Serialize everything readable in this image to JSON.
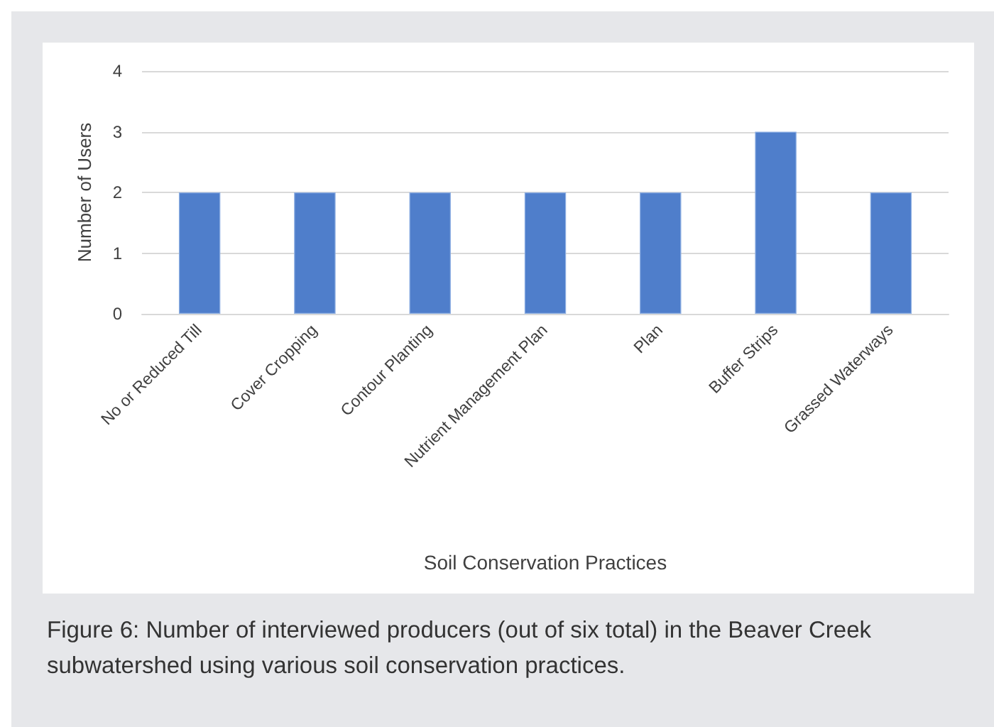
{
  "chart_data": {
    "type": "bar",
    "xlabel": "Soil Conservation Practices",
    "ylabel": "Number of Users",
    "categories": [
      "No or Reduced Till",
      "Cover Cropping",
      "Contour Planting",
      "Nutrient Management Plan",
      "Plan",
      "Buffer Strips",
      "Grassed Waterways"
    ],
    "values": [
      2,
      2,
      2,
      2,
      2,
      3,
      2
    ],
    "color": "#4f7ecb",
    "ylim": [
      0,
      4
    ],
    "yticks": [
      0,
      1,
      2,
      3,
      4
    ],
    "grid": "y",
    "annotations": [
      "Figure 6: Number of interviewed producers (out of six total) in the Beaver Creek subwatershed using various soil conservation practices."
    ]
  }
}
